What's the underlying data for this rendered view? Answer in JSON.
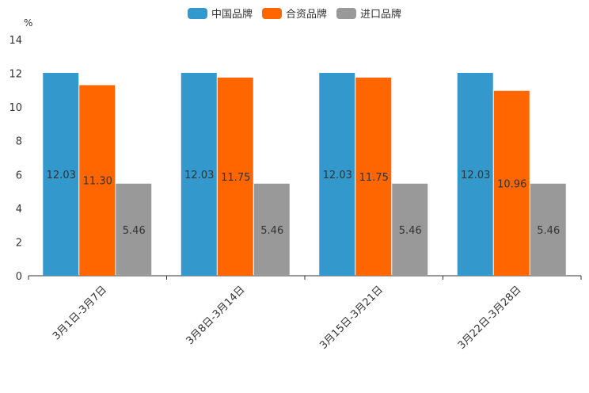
{
  "chart_data": {
    "type": "bar",
    "ylabel": "%",
    "ylim": [
      0,
      14
    ],
    "yticks": [
      0,
      2,
      4,
      6,
      8,
      10,
      12,
      14
    ],
    "categories": [
      "3月1日-3月7日",
      "3月8日-3月14日",
      "3月15日-3月21日",
      "3月22日-3月28日"
    ],
    "series": [
      {
        "name": "中国品牌",
        "color": "#3399cc",
        "values": [
          12.03,
          12.03,
          12.03,
          12.03
        ],
        "labels": [
          "12.03",
          "12.03",
          "12.03",
          "12.03"
        ]
      },
      {
        "name": "合资品牌",
        "color": "#ff6600",
        "values": [
          11.3,
          11.75,
          11.75,
          10.96
        ],
        "labels": [
          "11.30",
          "11.75",
          "11.75",
          "10.96"
        ]
      },
      {
        "name": "进口品牌",
        "color": "#999999",
        "values": [
          5.46,
          5.46,
          5.46,
          5.46
        ],
        "labels": [
          "5.46",
          "5.46",
          "5.46",
          "5.46"
        ]
      }
    ],
    "legend_position": "top-center",
    "grid": false
  }
}
